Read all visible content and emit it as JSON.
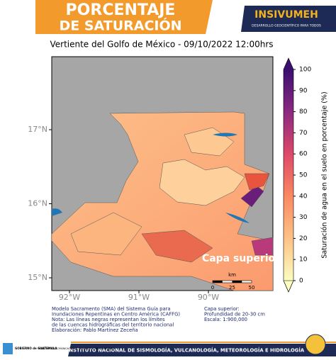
{
  "header": {
    "title_line1": "PORCENTAJE",
    "title_line2": "DE SATURACIÓN",
    "logo": "INSIVUMEH",
    "logo_tagline": "DESARROLLO GEOCIENTÍFICO PARA TODOS"
  },
  "map": {
    "title": "Vertiente del Golfo de México - 09/10/2022  12:00hrs",
    "xticks": [
      {
        "value": -92,
        "label": "92°W"
      },
      {
        "value": -91,
        "label": "91°W"
      },
      {
        "value": -90,
        "label": "90°W"
      }
    ],
    "yticks": [
      {
        "value": 17,
        "label": "17°N"
      },
      {
        "value": 16,
        "label": "16°N"
      },
      {
        "value": 15,
        "label": "15°N"
      }
    ],
    "annotation": "Capa superior",
    "scale": {
      "unit": "km",
      "ticks": [
        0,
        25,
        50
      ]
    },
    "colorbar": {
      "label": "Saturación de agua en el suelo en porcentaje (%)",
      "lim": [
        0,
        100
      ],
      "ticks": [
        0,
        10,
        20,
        30,
        40,
        50,
        60,
        70,
        80,
        90,
        100
      ]
    }
  },
  "notes": {
    "left": [
      "Modelo Sacramento (SMA) del Sistema Guía para",
      "Inundaciones Repentinas en Centro América (CAFFG)",
      "Nota: Las líneas negras representan los límites",
      "de las cuencas hidrográficas del territorio nacional",
      "Elaboración: Pablo Martínez Zeceña"
    ],
    "right": [
      "Capa superior:",
      "Profundidad de 20-30 cm",
      "Escala: 1:900,000"
    ]
  },
  "footer": {
    "gov": "GOBIERNO de GUATEMALA",
    "ministry": "MINISTERIO DE COMUNICACIONES, INFRAESTRUCTURA Y VIVIENDA",
    "institute": "INSTITUTO NACIONAL DE SISMOLOGÍA, VULCANOLOGÍA, METEOROLOGÍA E HIDROLOGÍA"
  }
}
